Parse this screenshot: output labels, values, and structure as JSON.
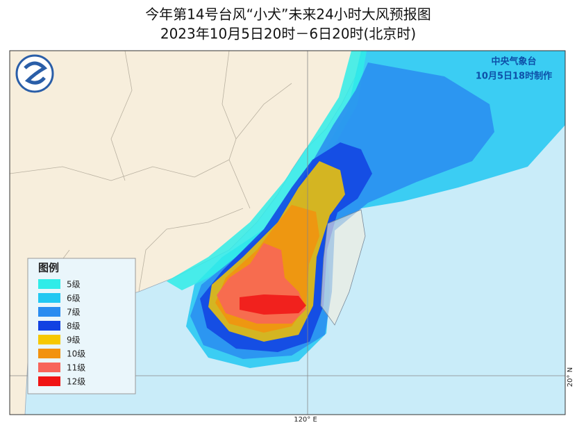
{
  "header": {
    "title": "今年第14号台风“小犬”未来24小时大风预报图",
    "subtitle": "2023年10月5日20时－6日20时(北京时)"
  },
  "agency": {
    "name": "中央气象台",
    "issued": "10月5日18时制作"
  },
  "legend": {
    "title": "图例",
    "items": [
      {
        "label": "5级",
        "color": "#30ece8"
      },
      {
        "label": "6级",
        "color": "#22c8f2"
      },
      {
        "label": "7级",
        "color": "#2a8cf0"
      },
      {
        "label": "8级",
        "color": "#1242e2"
      },
      {
        "label": "9级",
        "color": "#f6c800"
      },
      {
        "label": "10级",
        "color": "#f2920e"
      },
      {
        "label": "11级",
        "color": "#f8645a"
      },
      {
        "label": "12级",
        "color": "#f01414"
      }
    ]
  },
  "axes": {
    "lon_label": "120° E",
    "lat_label": "20° N"
  }
}
